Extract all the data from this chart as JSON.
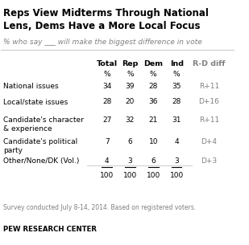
{
  "title": "Reps View Midterms Through National\nLens, Dems Have a More Local Focus",
  "subtitle": "% who say ___ will make the biggest difference in vote",
  "col_headers": [
    "Total",
    "Rep",
    "Dem",
    "Ind",
    "R-D diff"
  ],
  "col_subheaders": [
    "%",
    "%",
    "%",
    "%",
    ""
  ],
  "row_labels": [
    "National issues",
    "Local/state issues",
    "Candidate's character\n& experience",
    "Candidate's political\nparty",
    "Other/None/DK (Vol.)"
  ],
  "data": [
    [
      34,
      39,
      28,
      35,
      "R+11"
    ],
    [
      28,
      20,
      36,
      28,
      "D+16"
    ],
    [
      27,
      32,
      21,
      31,
      "R+11"
    ],
    [
      7,
      6,
      10,
      4,
      "D+4"
    ],
    [
      4,
      3,
      6,
      3,
      "D+3"
    ]
  ],
  "totals": [
    100,
    100,
    100,
    100
  ],
  "underline_row": 4,
  "footer": "Survey conducted July 8-14, 2014. Based on registered voters.",
  "source": "PEW RESEARCH CENTER",
  "title_color": "#000000",
  "subtitle_color": "#808080",
  "header_color": "#000000",
  "rd_diff_color": "#808080",
  "bg_color": "#ffffff",
  "separator_color": "#cccccc"
}
